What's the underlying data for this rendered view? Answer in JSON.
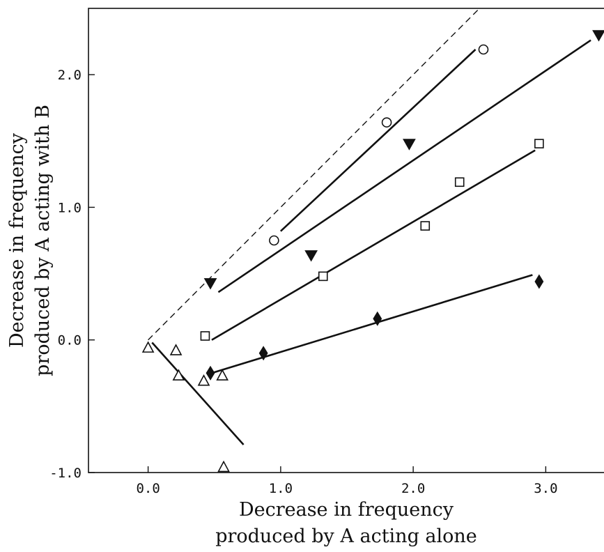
{
  "chart_data": {
    "type": "scatter",
    "xlabel": [
      "Decrease in frequency",
      "produced by A acting alone"
    ],
    "ylabel": [
      "Decrease in frequency",
      "produced by A acting with B"
    ],
    "xlim": [
      -0.45,
      3.45
    ],
    "ylim": [
      -1.0,
      2.5
    ],
    "x_ticks": [
      0.0,
      1.0,
      2.0,
      3.0
    ],
    "x_tick_labels": [
      "0.0",
      "1.0",
      "2.0",
      "3.0"
    ],
    "y_ticks": [
      -1.0,
      0.0,
      1.0,
      2.0
    ],
    "y_tick_labels": [
      "-1.0",
      "0.0",
      "1.0",
      "2.0"
    ],
    "grid": false,
    "reference_line": {
      "style": "dashed",
      "x": [
        0.0,
        2.5
      ],
      "y": [
        0.0,
        2.5
      ]
    },
    "series": [
      {
        "marker": "circle-open",
        "points": [
          [
            0.95,
            0.75
          ],
          [
            1.8,
            1.64
          ],
          [
            2.53,
            2.19
          ]
        ],
        "fit": [
          [
            1.0,
            0.82
          ],
          [
            2.47,
            2.19
          ]
        ]
      },
      {
        "marker": "triangle-down-filled",
        "points": [
          [
            0.47,
            0.43
          ],
          [
            1.23,
            0.64
          ],
          [
            1.97,
            1.48
          ],
          [
            3.4,
            2.3
          ]
        ],
        "fit": [
          [
            0.53,
            0.36
          ],
          [
            3.34,
            2.26
          ]
        ]
      },
      {
        "marker": "square-open",
        "points": [
          [
            0.43,
            0.03
          ],
          [
            1.32,
            0.48
          ],
          [
            2.09,
            0.86
          ],
          [
            2.35,
            1.19
          ],
          [
            2.95,
            1.48
          ]
        ],
        "fit": [
          [
            0.48,
            0.0
          ],
          [
            2.92,
            1.43
          ]
        ]
      },
      {
        "marker": "diamond-filled",
        "points": [
          [
            0.47,
            -0.25
          ],
          [
            0.87,
            -0.1
          ],
          [
            1.73,
            0.16
          ],
          [
            2.95,
            0.44
          ]
        ],
        "fit": [
          [
            0.48,
            -0.25
          ],
          [
            2.9,
            0.49
          ]
        ]
      },
      {
        "marker": "triangle-up-open",
        "points": [
          [
            0.0,
            -0.06
          ],
          [
            0.21,
            -0.08
          ],
          [
            0.23,
            -0.27
          ],
          [
            0.42,
            -0.31
          ],
          [
            0.56,
            -0.27
          ],
          [
            0.57,
            -0.96
          ]
        ],
        "fit": [
          [
            0.03,
            -0.02
          ],
          [
            0.72,
            -0.79
          ]
        ]
      }
    ]
  }
}
